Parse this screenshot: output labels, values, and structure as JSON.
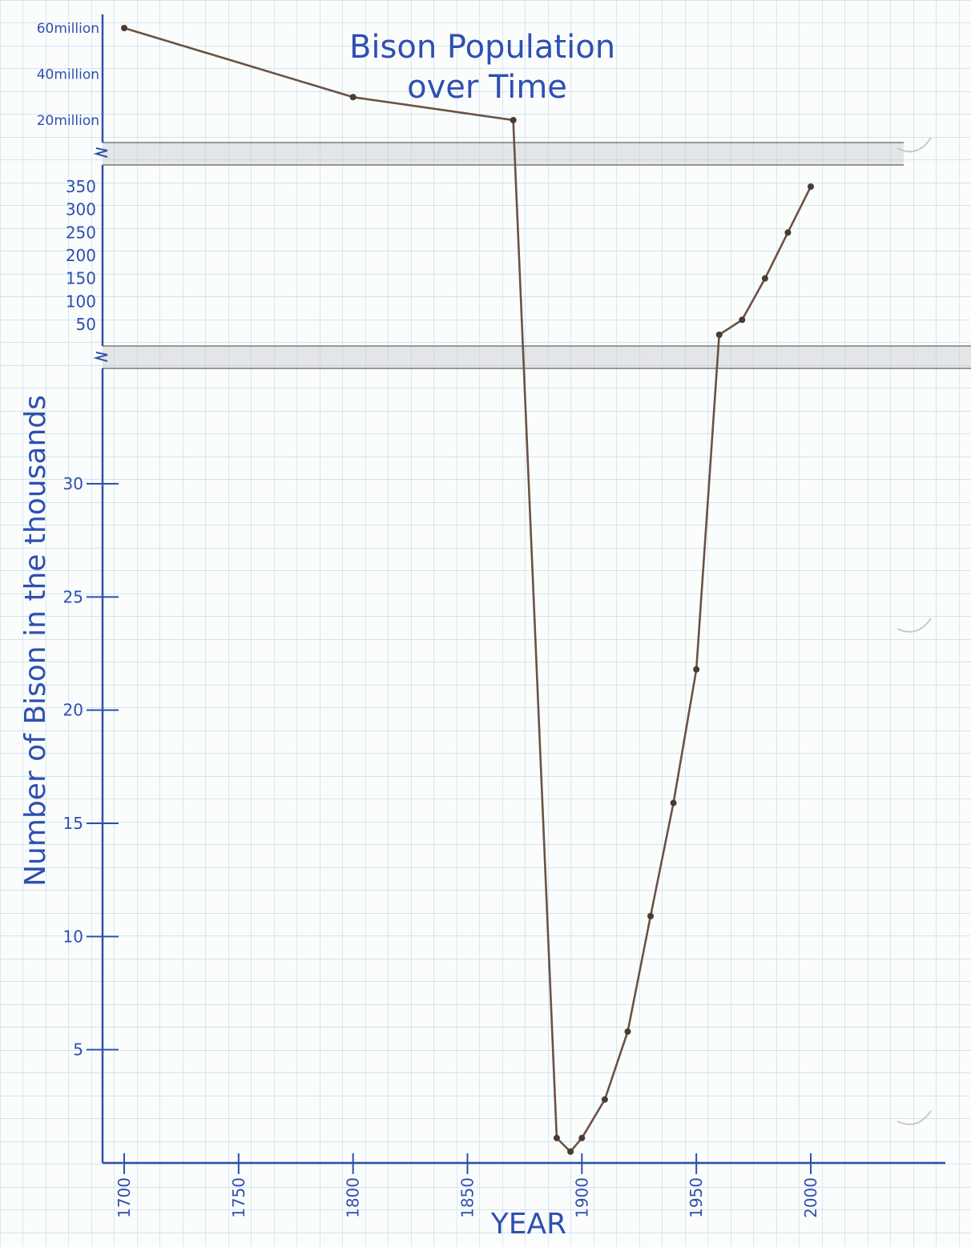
{
  "chart_data": {
    "type": "line",
    "title": "Bison Population over Time",
    "title_lines": [
      "Bison Population",
      "over Time"
    ],
    "xlabel": "YEAR",
    "ylabel": "Number of Bison in the thousands",
    "xlim": [
      1700,
      2000
    ],
    "x_ticks": [
      "1700",
      "1750",
      "1800",
      "1850",
      "1900",
      "1950",
      "2000"
    ],
    "y_ticks_upper_millions": [
      "60million",
      "40million",
      "20million"
    ],
    "y_ticks_middle_thousands": [
      "350",
      "300",
      "250",
      "200",
      "150",
      "100",
      "50"
    ],
    "y_ticks_lower_thousands": [
      "30",
      "25",
      "20",
      "15",
      "10",
      "5"
    ],
    "axis_breaks": 2,
    "grid": true,
    "series": [
      {
        "color": "#6b5244",
        "points": [
          {
            "x": 1700,
            "y": 60000000
          },
          {
            "x": 1800,
            "y": 30000000
          },
          {
            "x": 1870,
            "y": 20000000
          },
          {
            "x": 1889,
            "y": 1100
          },
          {
            "x": 1895,
            "y": 500
          },
          {
            "x": 1900,
            "y": 1100
          },
          {
            "x": 1910,
            "y": 2800
          },
          {
            "x": 1920,
            "y": 5800
          },
          {
            "x": 1930,
            "y": 10900
          },
          {
            "x": 1940,
            "y": 15900
          },
          {
            "x": 1950,
            "y": 21800
          },
          {
            "x": 1960,
            "y": 40000
          },
          {
            "x": 1970,
            "y": 60000
          },
          {
            "x": 1980,
            "y": 150000
          },
          {
            "x": 1990,
            "y": 250000
          },
          {
            "x": 2000,
            "y": 350000
          }
        ]
      }
    ]
  }
}
